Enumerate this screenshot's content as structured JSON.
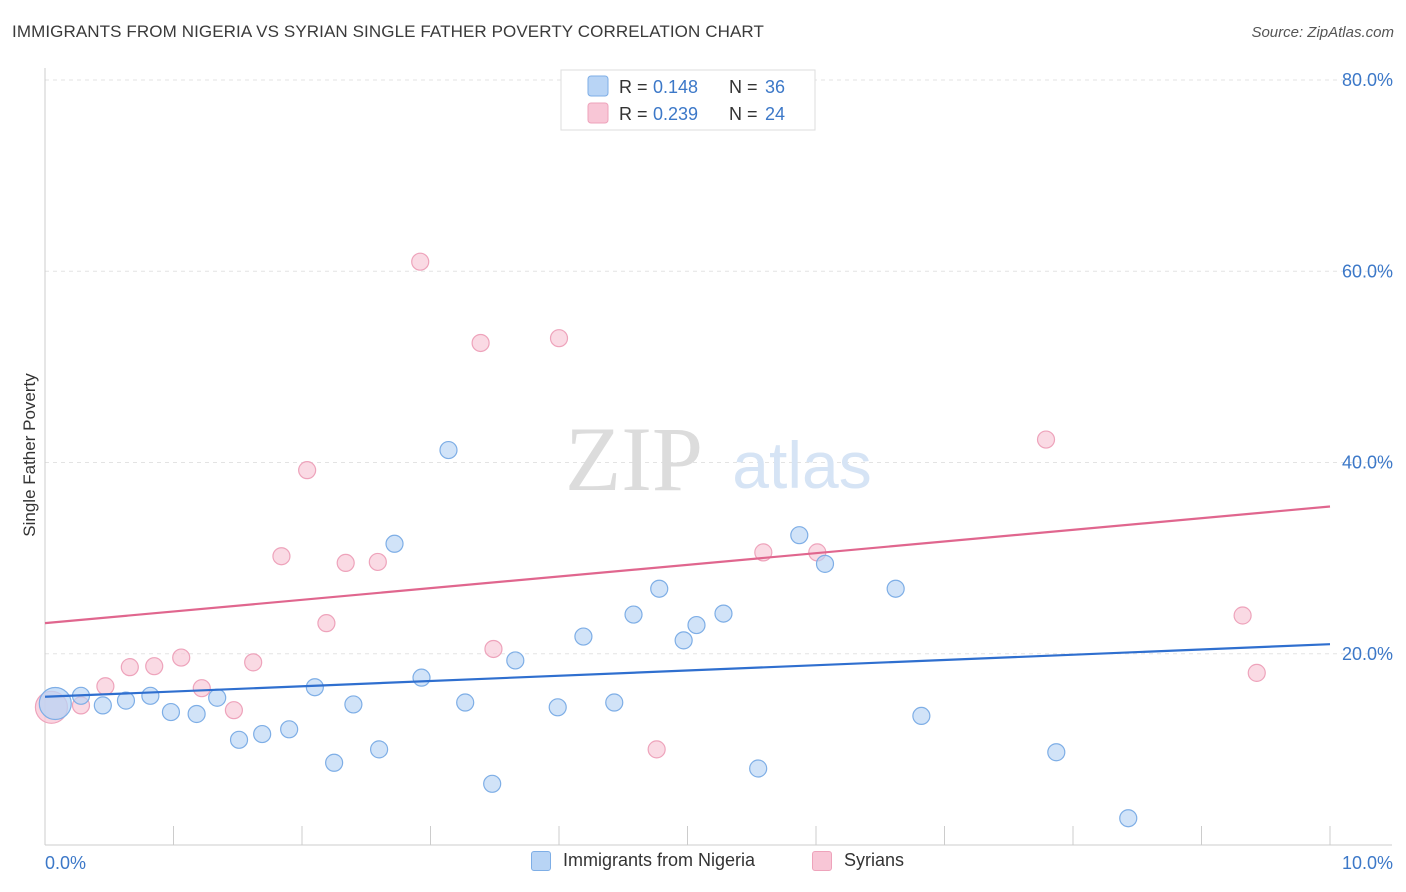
{
  "title": "IMMIGRANTS FROM NIGERIA VS SYRIAN SINGLE FATHER POVERTY CORRELATION CHART",
  "source": "Source: ZipAtlas.com",
  "watermark": {
    "zip": "ZIP",
    "atlas": "atlas"
  },
  "colors": {
    "blue_fill": "#b8d4f5",
    "blue_stroke": "#7eaee6",
    "blue_line": "#2f6fcf",
    "pink_fill": "#f8c6d6",
    "pink_stroke": "#eea3bb",
    "pink_line": "#e0668e",
    "axis_text": "#3c78c8",
    "grid": "#e3e3e3"
  },
  "legend_top": [
    {
      "r_label": "R = ",
      "r_value": "0.148",
      "n_label": "N = ",
      "n_value": "36"
    },
    {
      "r_label": "R = ",
      "r_value": "0.239",
      "n_label": "N = ",
      "n_value": "24"
    }
  ],
  "chart_data": {
    "type": "scatter",
    "title": "IMMIGRANTS FROM NIGERIA VS SYRIAN SINGLE FATHER POVERTY CORRELATION CHART",
    "xlabel": "",
    "ylabel": "Single Father Poverty",
    "xlim": [
      0,
      10
    ],
    "ylim": [
      0,
      80
    ],
    "x_tick_labels": [
      "0.0%",
      "10.0%"
    ],
    "y_tick_labels": [
      "20.0%",
      "40.0%",
      "60.0%",
      "80.0%"
    ],
    "y_ticks": [
      20,
      40,
      60,
      80
    ],
    "grid": true,
    "legend_position": "bottom",
    "series": [
      {
        "name": "Immigrants from Nigeria",
        "color": "#b8d4f5",
        "R": 0.148,
        "N": 36,
        "trend": {
          "x": [
            0,
            10
          ],
          "y": [
            15.5,
            21.0
          ]
        },
        "points": [
          {
            "x": 0.08,
            "y": 14.8,
            "big": true
          },
          {
            "x": 0.28,
            "y": 15.6
          },
          {
            "x": 0.45,
            "y": 14.6
          },
          {
            "x": 0.63,
            "y": 15.1
          },
          {
            "x": 0.82,
            "y": 15.6
          },
          {
            "x": 0.98,
            "y": 13.9
          },
          {
            "x": 1.18,
            "y": 13.7
          },
          {
            "x": 1.34,
            "y": 15.4
          },
          {
            "x": 1.51,
            "y": 11.0
          },
          {
            "x": 1.69,
            "y": 11.6
          },
          {
            "x": 1.9,
            "y": 12.1
          },
          {
            "x": 2.1,
            "y": 16.5
          },
          {
            "x": 2.25,
            "y": 8.6
          },
          {
            "x": 2.4,
            "y": 14.7
          },
          {
            "x": 2.6,
            "y": 10.0
          },
          {
            "x": 2.72,
            "y": 31.5
          },
          {
            "x": 2.93,
            "y": 17.5
          },
          {
            "x": 3.14,
            "y": 41.3
          },
          {
            "x": 3.27,
            "y": 14.9
          },
          {
            "x": 3.48,
            "y": 6.4
          },
          {
            "x": 3.66,
            "y": 19.3
          },
          {
            "x": 3.99,
            "y": 14.4
          },
          {
            "x": 4.19,
            "y": 21.8
          },
          {
            "x": 4.43,
            "y": 14.9
          },
          {
            "x": 4.58,
            "y": 24.1
          },
          {
            "x": 4.78,
            "y": 26.8
          },
          {
            "x": 4.97,
            "y": 21.4
          },
          {
            "x": 5.07,
            "y": 23.0
          },
          {
            "x": 5.28,
            "y": 24.2
          },
          {
            "x": 5.55,
            "y": 8.0
          },
          {
            "x": 5.87,
            "y": 32.4
          },
          {
            "x": 6.07,
            "y": 29.4
          },
          {
            "x": 6.62,
            "y": 26.8
          },
          {
            "x": 6.82,
            "y": 13.5
          },
          {
            "x": 7.87,
            "y": 9.7
          },
          {
            "x": 8.43,
            "y": 2.8
          }
        ]
      },
      {
        "name": "Syrians",
        "color": "#f8c6d6",
        "R": 0.239,
        "N": 24,
        "trend": {
          "x": [
            0,
            10
          ],
          "y": [
            23.2,
            35.4
          ]
        },
        "points": [
          {
            "x": 0.05,
            "y": 14.4,
            "big": true
          },
          {
            "x": 0.28,
            "y": 14.6
          },
          {
            "x": 0.47,
            "y": 16.6
          },
          {
            "x": 0.66,
            "y": 18.6
          },
          {
            "x": 0.85,
            "y": 18.7
          },
          {
            "x": 1.06,
            "y": 19.6
          },
          {
            "x": 1.22,
            "y": 16.4
          },
          {
            "x": 1.47,
            "y": 14.1
          },
          {
            "x": 1.62,
            "y": 19.1
          },
          {
            "x": 1.84,
            "y": 30.2
          },
          {
            "x": 2.04,
            "y": 39.2
          },
          {
            "x": 2.19,
            "y": 23.2
          },
          {
            "x": 2.34,
            "y": 29.5
          },
          {
            "x": 2.59,
            "y": 29.6
          },
          {
            "x": 2.92,
            "y": 61.0
          },
          {
            "x": 3.39,
            "y": 52.5
          },
          {
            "x": 3.49,
            "y": 20.5
          },
          {
            "x": 4.0,
            "y": 53.0
          },
          {
            "x": 4.76,
            "y": 10.0
          },
          {
            "x": 5.59,
            "y": 30.6
          },
          {
            "x": 6.01,
            "y": 30.6
          },
          {
            "x": 7.79,
            "y": 42.4
          },
          {
            "x": 9.32,
            "y": 24.0
          },
          {
            "x": 9.43,
            "y": 18.0
          }
        ]
      }
    ]
  }
}
